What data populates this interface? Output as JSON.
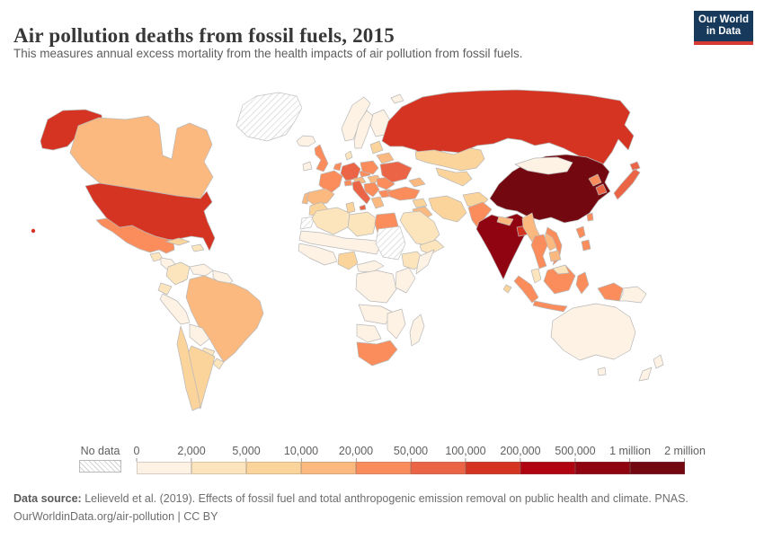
{
  "header": {
    "title": "Air pollution deaths from fossil fuels, 2015",
    "subtitle": "This measures annual excess mortality from the health impacts of air pollution from fossil fuels.",
    "logo": {
      "line1": "Our World",
      "line2": "in Data",
      "bg_color": "#173a5c",
      "accent_color": "#d73a32"
    }
  },
  "legend": {
    "no_data_label": "No data",
    "tick_labels": [
      "0",
      "2,000",
      "5,000",
      "10,000",
      "20,000",
      "50,000",
      "100,000",
      "200,000",
      "500,000",
      "1 million",
      "2 million"
    ]
  },
  "footer": {
    "source_label": "Data source:",
    "source_text": " Lelieveld et al. (2019). Effects of fossil fuel and total anthropogenic emission removal on public health and climate. PNAS.",
    "link_line": "OurWorldinData.org/air-pollution | CC BY"
  },
  "chart_data": {
    "type": "choropleth",
    "title": "Air pollution deaths from fossil fuels, 2015",
    "unit": "annual excess deaths",
    "legend_scale": [
      0,
      2000,
      5000,
      10000,
      20000,
      50000,
      100000,
      200000,
      500000,
      1000000,
      2000000
    ],
    "bins": [
      {
        "bin": 1,
        "range": "0–2,000",
        "color": "#fdf2e4"
      },
      {
        "bin": 2,
        "range": "2,000–5,000",
        "color": "#fce4bd"
      },
      {
        "bin": 3,
        "range": "5,000–10,000",
        "color": "#fbd49c"
      },
      {
        "bin": 4,
        "range": "10,000–20,000",
        "color": "#fbb97f"
      },
      {
        "bin": 5,
        "range": "20,000–50,000",
        "color": "#fb8d5c"
      },
      {
        "bin": 6,
        "range": "50,000–100,000",
        "color": "#ec6446"
      },
      {
        "bin": 7,
        "range": "100,000–200,000",
        "color": "#d53422"
      },
      {
        "bin": 8,
        "range": "200,000–500,000",
        "color": "#b00511"
      },
      {
        "bin": 9,
        "range": "500,000–1 million",
        "color": "#8f0410"
      },
      {
        "bin": 10,
        "range": "1 million–2 million",
        "color": "#730810"
      }
    ],
    "no_data_style": "hatched",
    "countries": [
      {
        "id": "greenland",
        "name": "Greenland",
        "bin": 0
      },
      {
        "id": "sudan",
        "name": "Sudan / South Sudan",
        "bin": 0
      },
      {
        "id": "western-sahara",
        "name": "Western Sahara",
        "bin": 0
      },
      {
        "id": "usa",
        "name": "United States",
        "bin": 7
      },
      {
        "id": "alaska",
        "name": "United States (Alaska)",
        "bin": 7
      },
      {
        "id": "hawaii",
        "name": "United States (Hawaii)",
        "bin": 7
      },
      {
        "id": "canada",
        "name": "Canada",
        "bin": 4
      },
      {
        "id": "mexico",
        "name": "Mexico",
        "bin": 5
      },
      {
        "id": "guatemala",
        "name": "Guatemala",
        "bin": 2
      },
      {
        "id": "honduras-nicaragua",
        "name": "Honduras / Nicaragua",
        "bin": 1
      },
      {
        "id": "costa-rica-panama",
        "name": "Costa Rica / Panama",
        "bin": 1
      },
      {
        "id": "cuba",
        "name": "Cuba",
        "bin": 3
      },
      {
        "id": "hispaniola",
        "name": "Haiti / Dominican Republic",
        "bin": 2
      },
      {
        "id": "colombia",
        "name": "Colombia",
        "bin": 2
      },
      {
        "id": "venezuela",
        "name": "Venezuela",
        "bin": 1
      },
      {
        "id": "guyanas",
        "name": "Guyana / Suriname",
        "bin": 1
      },
      {
        "id": "ecuador",
        "name": "Ecuador",
        "bin": 2
      },
      {
        "id": "peru",
        "name": "Peru",
        "bin": 1
      },
      {
        "id": "brazil",
        "name": "Brazil",
        "bin": 4
      },
      {
        "id": "bolivia",
        "name": "Bolivia",
        "bin": 1
      },
      {
        "id": "paraguay",
        "name": "Paraguay",
        "bin": 2
      },
      {
        "id": "chile",
        "name": "Chile",
        "bin": 3
      },
      {
        "id": "argentina",
        "name": "Argentina",
        "bin": 3
      },
      {
        "id": "uruguay",
        "name": "Uruguay",
        "bin": 2
      },
      {
        "id": "iceland",
        "name": "Iceland",
        "bin": 1
      },
      {
        "id": "ireland",
        "name": "Ireland",
        "bin": 1
      },
      {
        "id": "united-kingdom",
        "name": "United Kingdom",
        "bin": 5
      },
      {
        "id": "norway",
        "name": "Norway",
        "bin": 1
      },
      {
        "id": "sweden",
        "name": "Sweden",
        "bin": 1
      },
      {
        "id": "finland",
        "name": "Finland",
        "bin": 1
      },
      {
        "id": "denmark",
        "name": "Denmark",
        "bin": 2
      },
      {
        "id": "germany",
        "name": "Germany",
        "bin": 6
      },
      {
        "id": "benelux",
        "name": "Netherlands / Belgium",
        "bin": 5
      },
      {
        "id": "france",
        "name": "France",
        "bin": 5
      },
      {
        "id": "spain",
        "name": "Spain",
        "bin": 4
      },
      {
        "id": "portugal",
        "name": "Portugal",
        "bin": 4
      },
      {
        "id": "italy",
        "name": "Italy",
        "bin": 6
      },
      {
        "id": "switzerland",
        "name": "Switzerland",
        "bin": 5
      },
      {
        "id": "austria",
        "name": "Austria",
        "bin": 4
      },
      {
        "id": "czechia",
        "name": "Czechia / Slovakia",
        "bin": 5
      },
      {
        "id": "poland",
        "name": "Poland",
        "bin": 5
      },
      {
        "id": "hungary",
        "name": "Hungary",
        "bin": 4
      },
      {
        "id": "balkans",
        "name": "Western Balkans",
        "bin": 5
      },
      {
        "id": "greece",
        "name": "Greece",
        "bin": 4
      },
      {
        "id": "romania",
        "name": "Romania",
        "bin": 5
      },
      {
        "id": "bulgaria",
        "name": "Bulgaria",
        "bin": 5
      },
      {
        "id": "baltics",
        "name": "Baltic states",
        "bin": 3
      },
      {
        "id": "belarus",
        "name": "Belarus",
        "bin": 4
      },
      {
        "id": "ukraine",
        "name": "Ukraine",
        "bin": 6
      },
      {
        "id": "russia",
        "name": "Russia",
        "bin": 7
      },
      {
        "id": "kazakhstan",
        "name": "Kazakhstan",
        "bin": 3
      },
      {
        "id": "central-asia",
        "name": "Uzbekistan / Turkmenistan",
        "bin": 3
      },
      {
        "id": "caucasus",
        "name": "Caucasus",
        "bin": 4
      },
      {
        "id": "turkey",
        "name": "Turkey",
        "bin": 5
      },
      {
        "id": "syria",
        "name": "Syria",
        "bin": 3
      },
      {
        "id": "iraq",
        "name": "Iraq",
        "bin": 4
      },
      {
        "id": "iran",
        "name": "Iran",
        "bin": 3
      },
      {
        "id": "afghanistan",
        "name": "Afghanistan",
        "bin": 3
      },
      {
        "id": "saudi-arabia",
        "name": "Saudi Arabia",
        "bin": 2
      },
      {
        "id": "yemen-oman",
        "name": "Yemen / Oman",
        "bin": 2
      },
      {
        "id": "pakistan",
        "name": "Pakistan",
        "bin": 5
      },
      {
        "id": "india",
        "name": "India",
        "bin": 9
      },
      {
        "id": "nepal",
        "name": "Nepal",
        "bin": 4
      },
      {
        "id": "bangladesh",
        "name": "Bangladesh",
        "bin": 7
      },
      {
        "id": "sri-lanka",
        "name": "Sri Lanka",
        "bin": 3
      },
      {
        "id": "myanmar",
        "name": "Myanmar",
        "bin": 4
      },
      {
        "id": "thailand",
        "name": "Thailand",
        "bin": 5
      },
      {
        "id": "laos",
        "name": "Laos",
        "bin": 4
      },
      {
        "id": "cambodia",
        "name": "Cambodia",
        "bin": 4
      },
      {
        "id": "vietnam",
        "name": "Vietnam",
        "bin": 5
      },
      {
        "id": "china",
        "name": "China",
        "bin": 10
      },
      {
        "id": "mongolia",
        "name": "Mongolia",
        "bin": 1
      },
      {
        "id": "north-korea",
        "name": "North Korea",
        "bin": 5
      },
      {
        "id": "south-korea",
        "name": "South Korea",
        "bin": 6
      },
      {
        "id": "japan",
        "name": "Japan",
        "bin": 6
      },
      {
        "id": "taiwan",
        "name": "Taiwan",
        "bin": 5
      },
      {
        "id": "philippines",
        "name": "Philippines",
        "bin": 5
      },
      {
        "id": "malaysia",
        "name": "Malaysia (peninsular)",
        "bin": 2
      },
      {
        "id": "malaysia-borneo",
        "name": "Malaysia (Borneo)",
        "bin": 2
      },
      {
        "id": "indonesia-sumatra",
        "name": "Indonesia (Sumatra)",
        "bin": 5
      },
      {
        "id": "borneo",
        "name": "Indonesia (Kalimantan)",
        "bin": 5
      },
      {
        "id": "indonesia-java",
        "name": "Indonesia (Java)",
        "bin": 5
      },
      {
        "id": "sulawesi",
        "name": "Indonesia (Sulawesi)",
        "bin": 5
      },
      {
        "id": "indonesia-papua",
        "name": "Indonesia (Papua)",
        "bin": 5
      },
      {
        "id": "papua-new-guinea",
        "name": "Papua New Guinea",
        "bin": 1
      },
      {
        "id": "morocco",
        "name": "Morocco",
        "bin": 3
      },
      {
        "id": "algeria",
        "name": "Algeria",
        "bin": 2
      },
      {
        "id": "tunisia",
        "name": "Tunisia",
        "bin": 3
      },
      {
        "id": "libya",
        "name": "Libya",
        "bin": 2
      },
      {
        "id": "egypt",
        "name": "Egypt",
        "bin": 5
      },
      {
        "id": "sahel",
        "name": "Mauritania / Mali / Niger / Chad",
        "bin": 1
      },
      {
        "id": "ethiopia",
        "name": "Ethiopia",
        "bin": 2
      },
      {
        "id": "somalia",
        "name": "Somalia",
        "bin": 1
      },
      {
        "id": "west-africa",
        "name": "West Africa coast",
        "bin": 1
      },
      {
        "id": "nigeria",
        "name": "Nigeria",
        "bin": 3
      },
      {
        "id": "cameroon-car",
        "name": "Cameroon / CAR",
        "bin": 1
      },
      {
        "id": "dr-congo",
        "name": "DR Congo",
        "bin": 1
      },
      {
        "id": "kenya-tanzania",
        "name": "Kenya / Tanzania",
        "bin": 1
      },
      {
        "id": "angola-zambia",
        "name": "Angola / Zambia",
        "bin": 1
      },
      {
        "id": "mozambique-zimbabwe",
        "name": "Mozambique / Zimbabwe",
        "bin": 1
      },
      {
        "id": "namibia-botswana",
        "name": "Namibia / Botswana",
        "bin": 1
      },
      {
        "id": "south-africa",
        "name": "South Africa",
        "bin": 5
      },
      {
        "id": "madagascar",
        "name": "Madagascar",
        "bin": 1
      },
      {
        "id": "australia",
        "name": "Australia",
        "bin": 1
      },
      {
        "id": "tasmania",
        "name": "Australia (Tasmania)",
        "bin": 1
      },
      {
        "id": "new-zealand",
        "name": "New Zealand",
        "bin": 1
      },
      {
        "id": "svalbard",
        "name": "Svalbard",
        "bin": 1
      }
    ]
  }
}
